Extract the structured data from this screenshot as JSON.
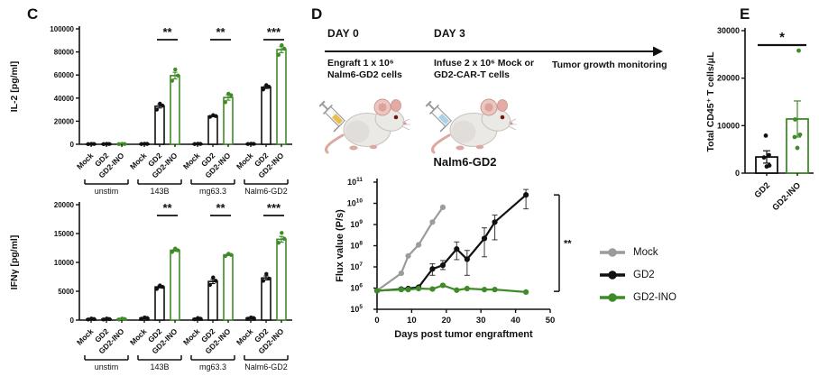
{
  "panel_c": {
    "label": "C"
  },
  "panel_d": {
    "label": "D",
    "timeline": {
      "day0": {
        "title": "DAY 0",
        "desc_lines": [
          "Engraft 1 x 10⁶",
          "Nalm6-GD2 cells"
        ]
      },
      "day3": {
        "title": "DAY 3",
        "desc_lines": [
          "Infuse 2 x 10⁶ Mock or",
          "GD2-CAR-T cells"
        ]
      },
      "monitoring": "Tumor growth monitoring",
      "syringe_colors": [
        "#e7bf4a",
        "#a9d3e8"
      ]
    }
  },
  "panel_e": {
    "label": "E"
  },
  "colors": {
    "black": "#111111",
    "green": "#3f8b28",
    "gray": "#9b9b9b"
  },
  "chart_data": [
    {
      "id": "il2",
      "type": "bar",
      "panel": "C",
      "ylabel": "IL-2 [pg/ml]",
      "ylim": [
        0,
        100000
      ],
      "ytick": 20000,
      "groups": [
        "unstim",
        "143B",
        "mg63.3",
        "Nalm6-GD2"
      ],
      "categories": [
        "Mock",
        "GD2",
        "GD2-INO"
      ],
      "bar_colors": [
        "#111111",
        "#111111",
        "#3f8b28"
      ],
      "values": [
        [
          300,
          300,
          300
        ],
        [
          350,
          33000,
          59500
        ],
        [
          350,
          24300,
          40500
        ],
        [
          400,
          49500,
          82000
        ]
      ],
      "errors": [
        [
          0,
          0,
          0
        ],
        [
          0,
          1600,
          2900
        ],
        [
          0,
          500,
          2300
        ],
        [
          0,
          1200,
          2600
        ]
      ],
      "points": [
        [
          [
            150,
            250,
            350
          ],
          [
            150,
            250,
            350
          ],
          [
            150,
            250,
            350
          ]
        ],
        [
          [
            200,
            300,
            400
          ],
          [
            30000,
            33500,
            35200
          ],
          [
            55000,
            59500,
            64800
          ]
        ],
        [
          [
            200,
            300,
            400
          ],
          [
            23800,
            24500,
            25200
          ],
          [
            36500,
            42500,
            43800
          ]
        ],
        [
          [
            250,
            350,
            450
          ],
          [
            47500,
            49800,
            51200
          ],
          [
            77500,
            82800,
            85800
          ]
        ]
      ],
      "significance": [
        null,
        "**",
        "**",
        "***"
      ]
    },
    {
      "id": "ifng",
      "type": "bar",
      "panel": "C",
      "ylabel": "IFNγ [pg/ml]",
      "ylim": [
        0,
        20000
      ],
      "ytick": 5000,
      "groups": [
        "unstim",
        "143B",
        "mg63.3",
        "Nalm6-GD2"
      ],
      "categories": [
        "Mock",
        "GD2",
        "GD2-INO"
      ],
      "bar_colors": [
        "#111111",
        "#111111",
        "#3f8b28"
      ],
      "values": [
        [
          200,
          200,
          200
        ],
        [
          350,
          5750,
          12100
        ],
        [
          250,
          6700,
          11300
        ],
        [
          350,
          7300,
          14000
        ]
      ],
      "errors": [
        [
          0,
          0,
          0
        ],
        [
          100,
          180,
          180
        ],
        [
          80,
          380,
          120
        ],
        [
          100,
          350,
          500
        ]
      ],
      "points": [
        [
          [
            100,
            180,
            260
          ],
          [
            100,
            180,
            260
          ],
          [
            100,
            180,
            260
          ]
        ],
        [
          [
            250,
            350,
            450
          ],
          [
            5400,
            5750,
            6000
          ],
          [
            11800,
            12100,
            12400
          ]
        ],
        [
          [
            150,
            250,
            350
          ],
          [
            6100,
            6800,
            7400
          ],
          [
            11100,
            11300,
            11500
          ]
        ],
        [
          [
            250,
            350,
            450
          ],
          [
            6800,
            7200,
            8000
          ],
          [
            13400,
            14100,
            15100
          ]
        ]
      ],
      "significance": [
        null,
        "**",
        "**",
        "***"
      ]
    },
    {
      "id": "flux",
      "type": "line",
      "panel": "D",
      "title": "Nalm6-GD2",
      "xlabel": "Days post tumor engraftment",
      "ylabel": "Flux value (P/s)",
      "xlim": [
        0,
        50
      ],
      "xticks": [
        0,
        10,
        20,
        30,
        40,
        50
      ],
      "ylog_exponents": [
        5,
        6,
        7,
        8,
        9,
        10,
        11
      ],
      "significance": "**",
      "legend_position": "right",
      "series": [
        {
          "name": "Mock",
          "color": "#9b9b9b",
          "x": [
            0,
            7,
            9,
            12,
            16,
            19
          ],
          "y": [
            750000,
            5000000,
            33000000,
            110000000,
            1300000000,
            6500000000
          ]
        },
        {
          "name": "GD2",
          "color": "#111111",
          "x": [
            0,
            7,
            9,
            12,
            16,
            19,
            23,
            26,
            31,
            34,
            43
          ],
          "y": [
            750000,
            900000,
            950000,
            1100000,
            8000000,
            12000000,
            70000000,
            23000000,
            220000000,
            1300000000,
            25000000000
          ],
          "lo": [
            null,
            null,
            null,
            null,
            4000000,
            7500000,
            22000000,
            4000000,
            30000000,
            190000000,
            5500000000
          ],
          "hi": [
            null,
            null,
            null,
            null,
            14000000,
            20000000,
            150000000,
            60000000,
            700000000,
            2800000000,
            45000000000
          ]
        },
        {
          "name": "GD2-INO",
          "color": "#3f8b28",
          "x": [
            0,
            7,
            9,
            12,
            16,
            19,
            23,
            26,
            31,
            34,
            43
          ],
          "y": [
            750000,
            850000,
            850000,
            950000,
            900000,
            1350000,
            800000,
            950000,
            850000,
            850000,
            650000
          ]
        }
      ]
    },
    {
      "id": "cd45",
      "type": "bar",
      "panel": "E",
      "ylabel": "Total CD45⁺ T cells/μL",
      "ylim": [
        0,
        30000
      ],
      "ytick": 10000,
      "categories": [
        "GD2",
        "GD2-INO"
      ],
      "bar_colors": [
        "#111111",
        "#3f8b28"
      ],
      "values": [
        3400,
        11400
      ],
      "errors": [
        1300,
        3800
      ],
      "points": [
        [
          7900,
          3800,
          3300,
          1600,
          1400
        ],
        [
          25800,
          11300,
          8100,
          7600,
          5300
        ]
      ],
      "significance": "*"
    }
  ]
}
